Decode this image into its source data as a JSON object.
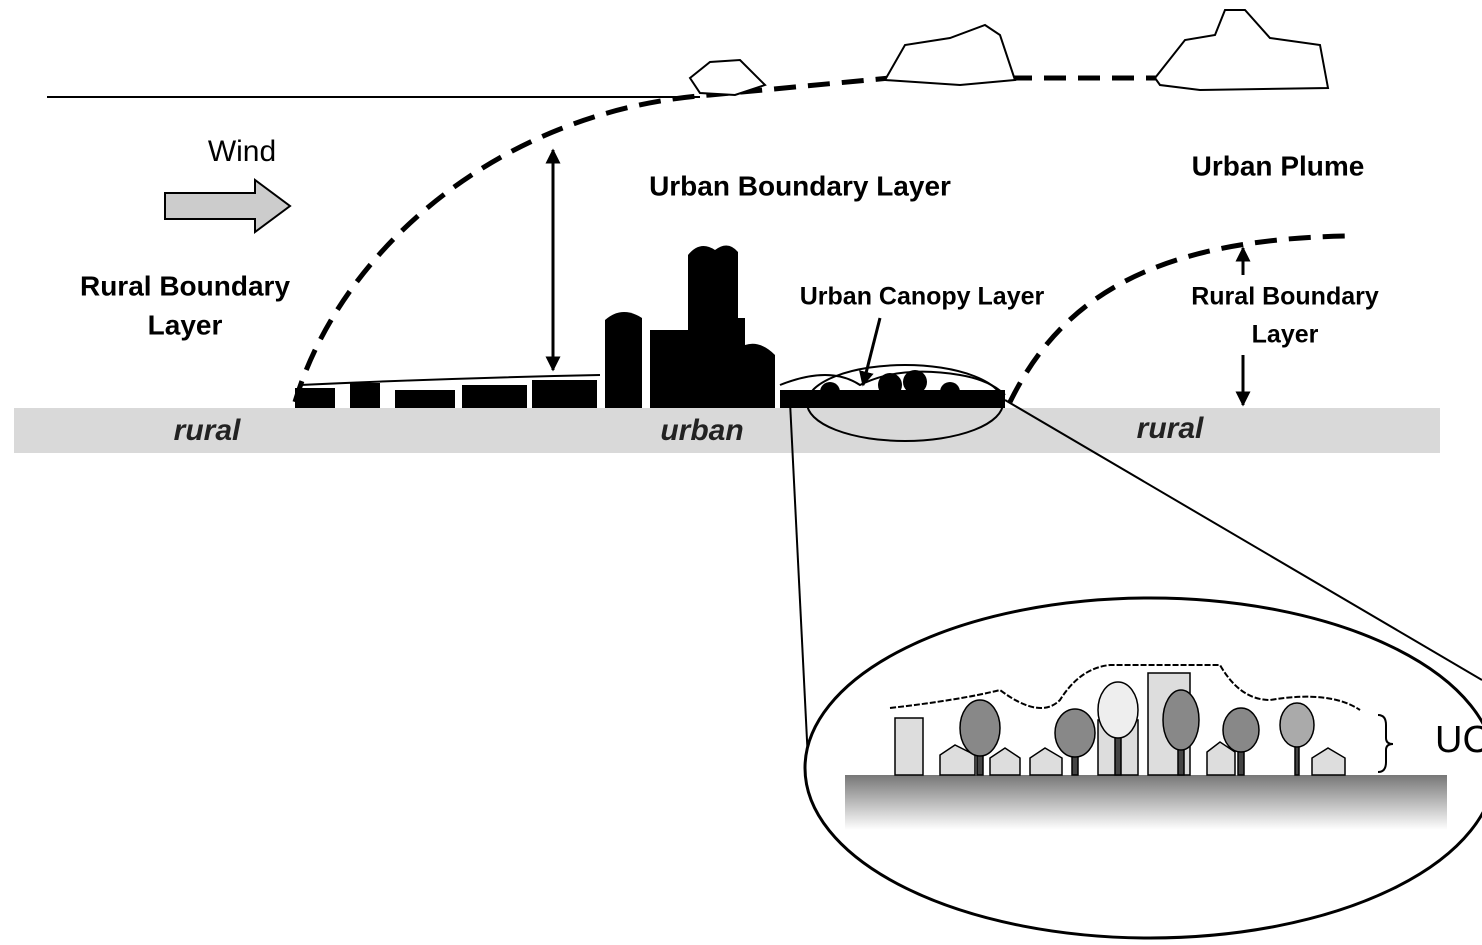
{
  "labels": {
    "wind": "Wind",
    "urban_boundary_layer": "Urban Boundary Layer",
    "urban_plume": "Urban Plume",
    "rural_boundary_layer_left": [
      "Rural Boundary",
      "Layer"
    ],
    "urban_canopy_layer": "Urban Canopy Layer",
    "rural_boundary_layer_right": [
      "Rural Boundary",
      "Layer"
    ],
    "ucl_abbrev": "UC"
  },
  "ground": [
    "rural",
    "urban",
    "rural"
  ]
}
